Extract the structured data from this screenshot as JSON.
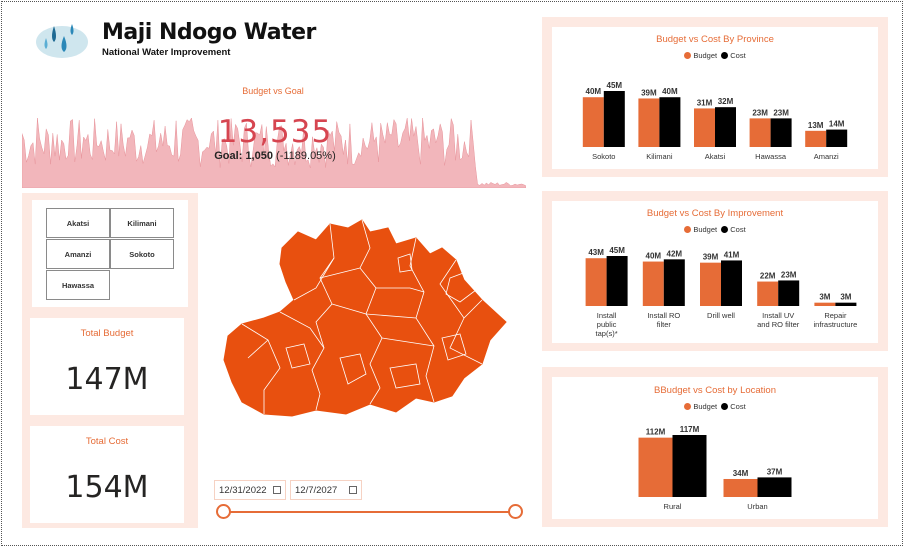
{
  "header": {
    "title": "Maji Ndogo Water",
    "subtitle": "National Water Improvement"
  },
  "budget_vs_goal": {
    "title": "Budget vs Goal",
    "value": "13,535",
    "goal_label": "Goal:",
    "goal_value": "1,050",
    "goal_delta": "(-1189.05%)"
  },
  "province_slicer": {
    "options": [
      "Akatsi",
      "Kilimani",
      "Amanzi",
      "Sokoto",
      "Hawassa"
    ]
  },
  "total_budget": {
    "label": "Total Budget",
    "value": "147M"
  },
  "total_cost": {
    "label": "Total Cost",
    "value": "154M"
  },
  "date_range": {
    "start": "12/31/2022",
    "end": "12/7/2027"
  },
  "colors": {
    "budget": "#e66c37",
    "cost": "#000000",
    "accent": "#e66c37",
    "kpi": "#d64550",
    "map": "#e8500f"
  },
  "icons": [
    "water-drops-logo-icon",
    "calendar-icon"
  ],
  "chart_data": [
    {
      "type": "bar",
      "title": "Budget vs Cost By Province",
      "legend": [
        "Budget",
        "Cost"
      ],
      "categories": [
        "Sokoto",
        "Kilimani",
        "Akatsi",
        "Hawassa",
        "Amanzi"
      ],
      "series": [
        {
          "name": "Budget",
          "values": [
            40,
            39,
            31,
            23,
            13
          ],
          "labels": [
            "40M",
            "39M",
            "31M",
            "23M",
            "13M"
          ]
        },
        {
          "name": "Cost",
          "values": [
            45,
            40,
            32,
            23,
            14
          ],
          "labels": [
            "45M",
            "40M",
            "32M",
            "23M",
            "14M"
          ]
        }
      ],
      "ylabel": "",
      "ylim": [
        0,
        45
      ]
    },
    {
      "type": "bar",
      "title": "Budget vs Cost By Improvement",
      "legend": [
        "Budget",
        "Cost"
      ],
      "categories": [
        "Install public tap(s)*",
        "Install RO filter",
        "Drill well",
        "Install UV and RO filter",
        "Repair infrastructure"
      ],
      "series": [
        {
          "name": "Budget",
          "values": [
            43,
            40,
            39,
            22,
            3
          ],
          "labels": [
            "43M",
            "40M",
            "39M",
            "22M",
            "3M"
          ]
        },
        {
          "name": "Cost",
          "values": [
            45,
            42,
            41,
            23,
            3
          ],
          "labels": [
            "45M",
            "42M",
            "41M",
            "23M",
            "3M"
          ]
        }
      ],
      "ylim": [
        0,
        45
      ]
    },
    {
      "type": "bar",
      "title": "BBudget vs Cost by Location",
      "legend": [
        "Budget",
        "Cost"
      ],
      "categories": [
        "Rural",
        "Urban"
      ],
      "series": [
        {
          "name": "Budget",
          "values": [
            112,
            34
          ],
          "labels": [
            "112M",
            "34M"
          ]
        },
        {
          "name": "Cost",
          "values": [
            117,
            37
          ],
          "labels": [
            "117M",
            "37M"
          ]
        }
      ],
      "ylim": [
        0,
        117
      ]
    }
  ]
}
